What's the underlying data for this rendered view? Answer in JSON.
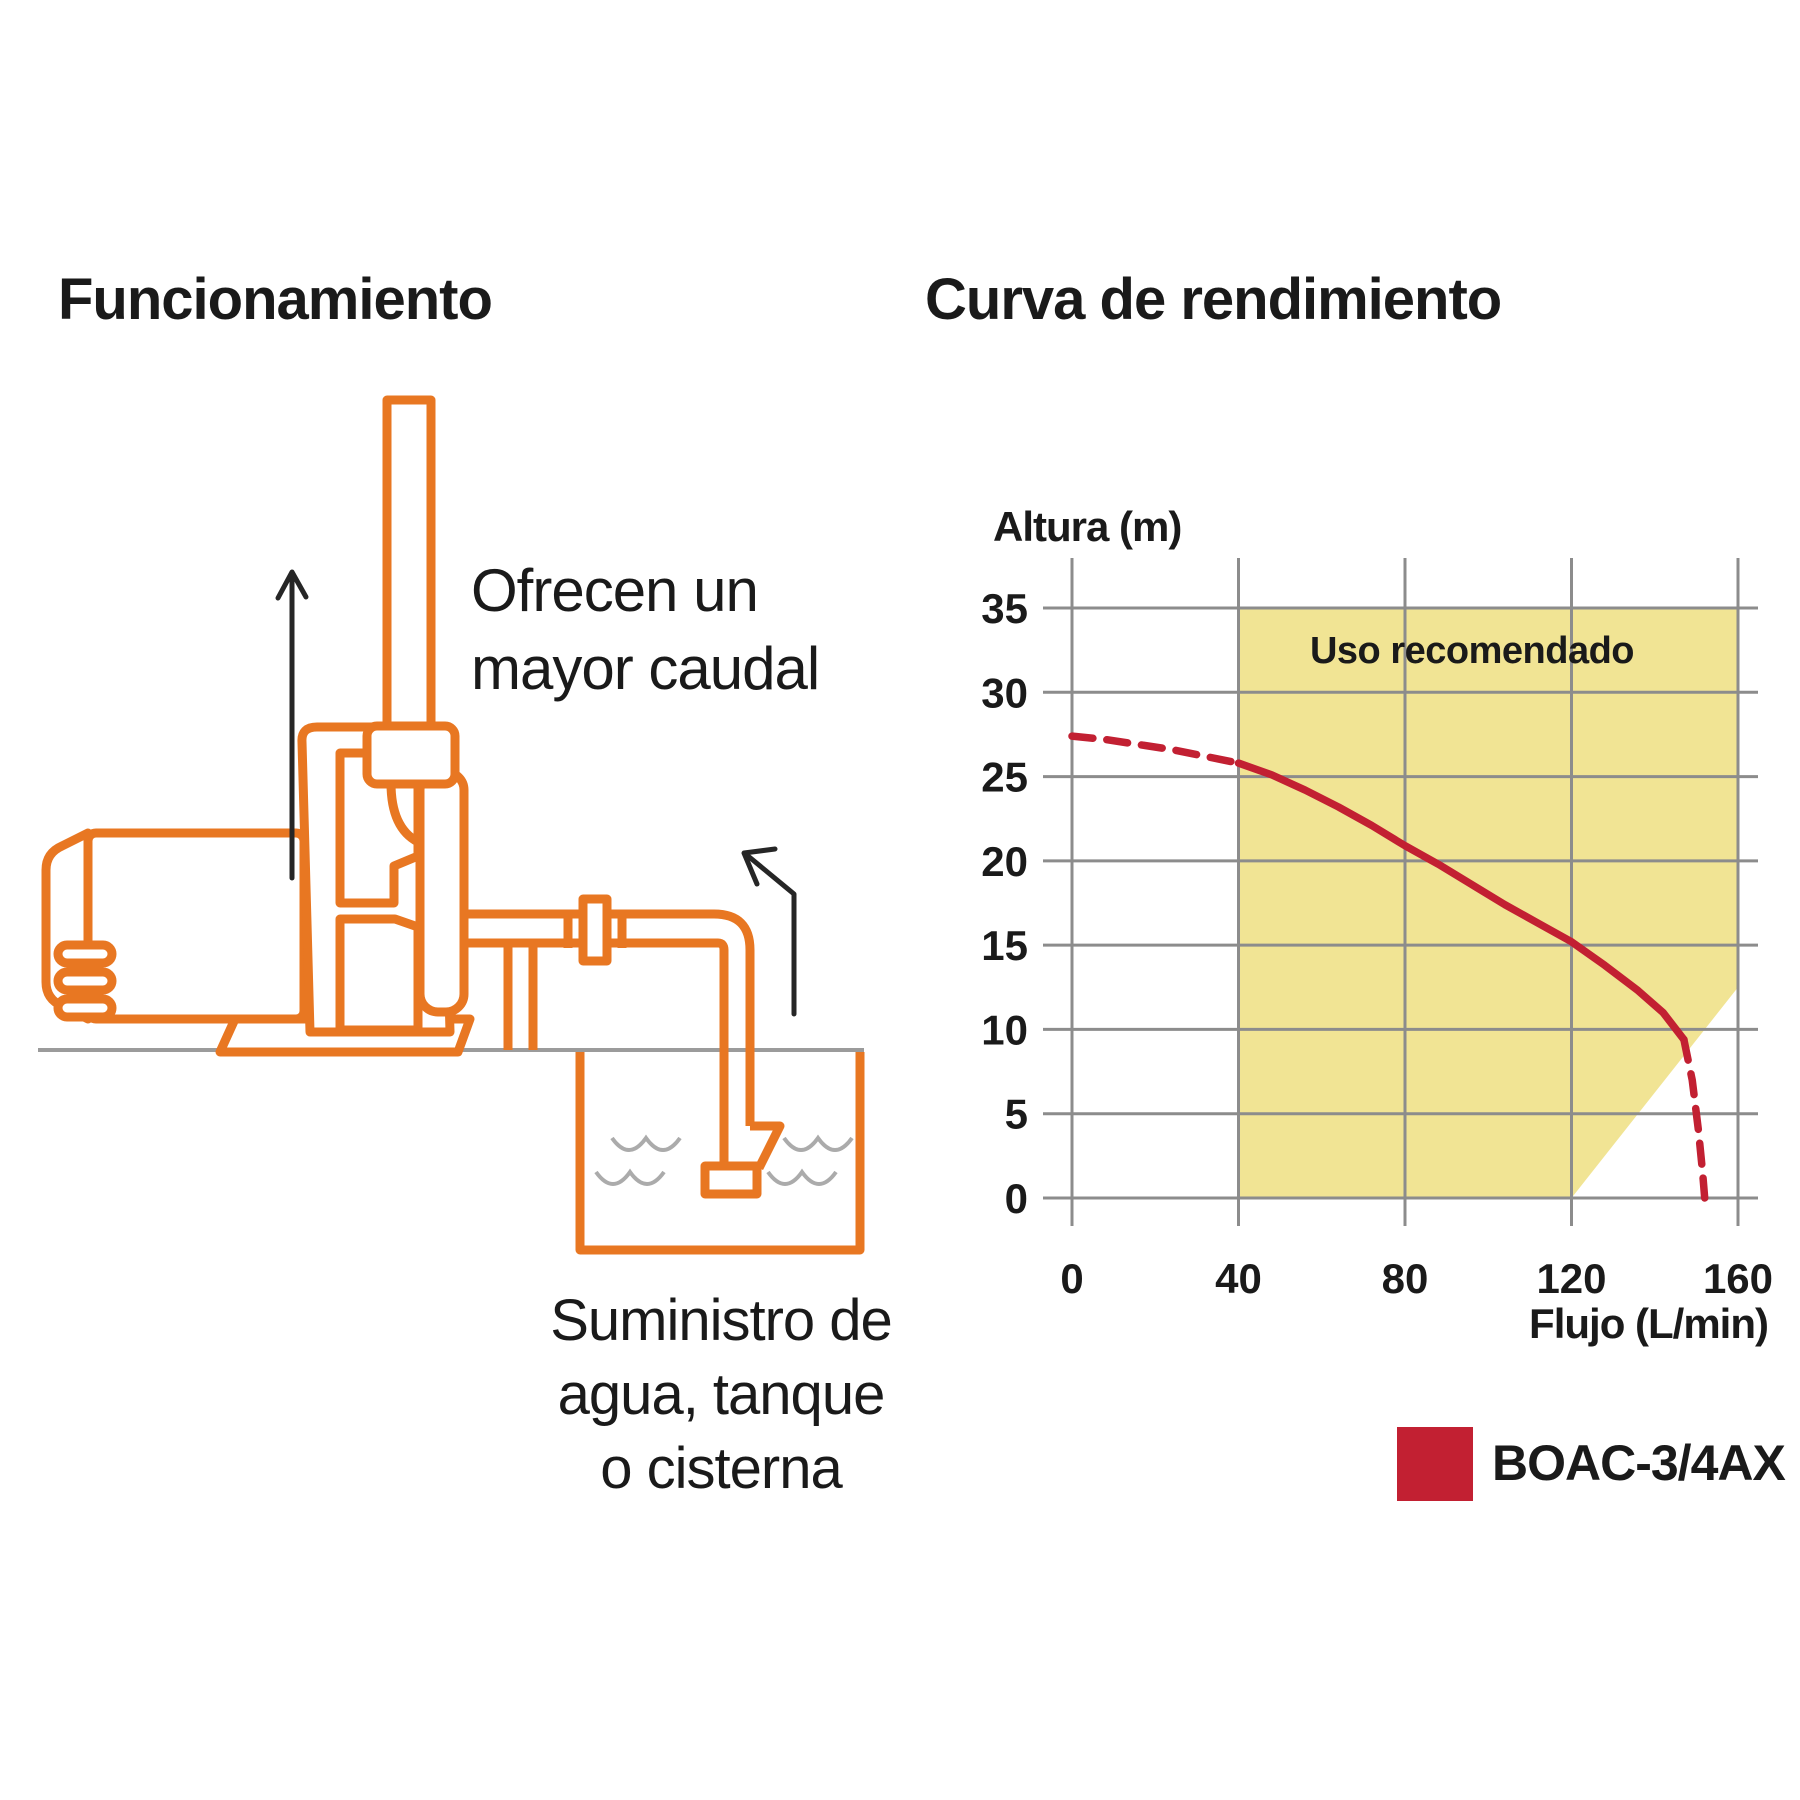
{
  "left_panel": {
    "title": "Funcionamiento",
    "outlet_note": "Ofrecen un\nmayor caudal",
    "supply_note": "Suministro de\nagua, tanque\no cisterna",
    "pump_color": "#E87722",
    "arrow_color": "#262626"
  },
  "chart_data": {
    "type": "line",
    "title": "Curva de rendimiento",
    "xlabel": "Flujo (L/min)",
    "ylabel": "Altura (m)",
    "xlim": [
      0,
      160
    ],
    "ylim": [
      0,
      35
    ],
    "x_ticks": [
      0,
      40,
      80,
      120,
      160
    ],
    "y_ticks": [
      0,
      5,
      10,
      15,
      20,
      25,
      30,
      35
    ],
    "grid": true,
    "grid_color": "#8C8C8C",
    "region": {
      "label": "Uso recomendado",
      "fill": "#F1E494",
      "polygon": [
        [
          40,
          0
        ],
        [
          40,
          35
        ],
        [
          160,
          35
        ],
        [
          160,
          12.5
        ],
        [
          120,
          0
        ]
      ]
    },
    "series": [
      {
        "name": "BOAC-3/4AX",
        "color": "#C22032",
        "segments": [
          {
            "style": "dashed",
            "points": [
              [
                0,
                27.4
              ],
              [
                8,
                27.2
              ],
              [
                16,
                26.9
              ],
              [
                24,
                26.6
              ],
              [
                32,
                26.2
              ],
              [
                40,
                25.8
              ]
            ]
          },
          {
            "style": "solid",
            "points": [
              [
                40,
                25.8
              ],
              [
                48,
                25.1
              ],
              [
                56,
                24.2
              ],
              [
                64,
                23.2
              ],
              [
                72,
                22.1
              ],
              [
                80,
                20.9
              ],
              [
                88,
                19.8
              ],
              [
                96,
                18.6
              ],
              [
                104,
                17.4
              ],
              [
                112,
                16.3
              ],
              [
                120,
                15.2
              ],
              [
                128,
                13.8
              ],
              [
                136,
                12.3
              ],
              [
                142,
                11.0
              ],
              [
                147,
                9.4
              ]
            ]
          },
          {
            "style": "dashed",
            "points": [
              [
                147,
                9.4
              ],
              [
                149,
                7.0
              ],
              [
                150.5,
                4.0
              ],
              [
                151.5,
                1.5
              ],
              [
                152,
                0
              ]
            ]
          }
        ]
      }
    ],
    "legend_position": "bottom-right"
  }
}
